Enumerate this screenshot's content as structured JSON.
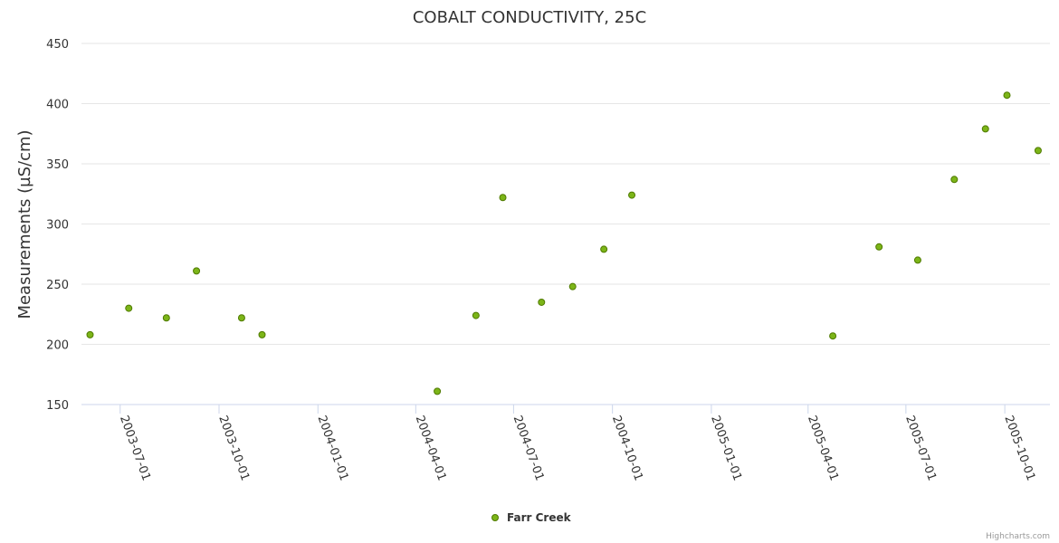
{
  "chart_data": {
    "type": "scatter",
    "title": "COBALT CONDUCTIVITY, 25C",
    "xlabel": "",
    "ylabel": "Measurements (µS/cm)",
    "ylim": [
      150,
      450
    ],
    "yticks": [
      150,
      200,
      250,
      300,
      350,
      400,
      450
    ],
    "xlim": [
      "2003-05-26",
      "2005-11-12"
    ],
    "xticks": [
      "2003-07-01",
      "2003-10-01",
      "2004-01-01",
      "2004-04-01",
      "2004-07-01",
      "2004-10-01",
      "2005-01-01",
      "2005-04-01",
      "2005-07-01",
      "2005-10-01"
    ],
    "grid": true,
    "legend_position": "bottom-center",
    "series": [
      {
        "name": "Farr Creek",
        "color": "#7cb518",
        "stroke": "#4f7a00",
        "points": [
          {
            "x": "2003-06-03",
            "y": 208
          },
          {
            "x": "2003-07-09",
            "y": 230
          },
          {
            "x": "2003-08-13",
            "y": 222
          },
          {
            "x": "2003-09-10",
            "y": 261
          },
          {
            "x": "2003-10-22",
            "y": 222
          },
          {
            "x": "2003-11-10",
            "y": 208
          },
          {
            "x": "2004-04-21",
            "y": 161
          },
          {
            "x": "2004-05-27",
            "y": 224
          },
          {
            "x": "2004-06-21",
            "y": 322
          },
          {
            "x": "2004-07-27",
            "y": 235
          },
          {
            "x": "2004-08-25",
            "y": 248
          },
          {
            "x": "2004-09-23",
            "y": 279
          },
          {
            "x": "2004-10-19",
            "y": 324
          },
          {
            "x": "2005-04-24",
            "y": 207
          },
          {
            "x": "2005-06-06",
            "y": 281
          },
          {
            "x": "2005-07-12",
            "y": 270
          },
          {
            "x": "2005-08-15",
            "y": 337
          },
          {
            "x": "2005-09-13",
            "y": 379
          },
          {
            "x": "2005-10-03",
            "y": 407
          },
          {
            "x": "2005-11-01",
            "y": 361
          }
        ]
      }
    ],
    "credits": "Highcharts.com"
  }
}
